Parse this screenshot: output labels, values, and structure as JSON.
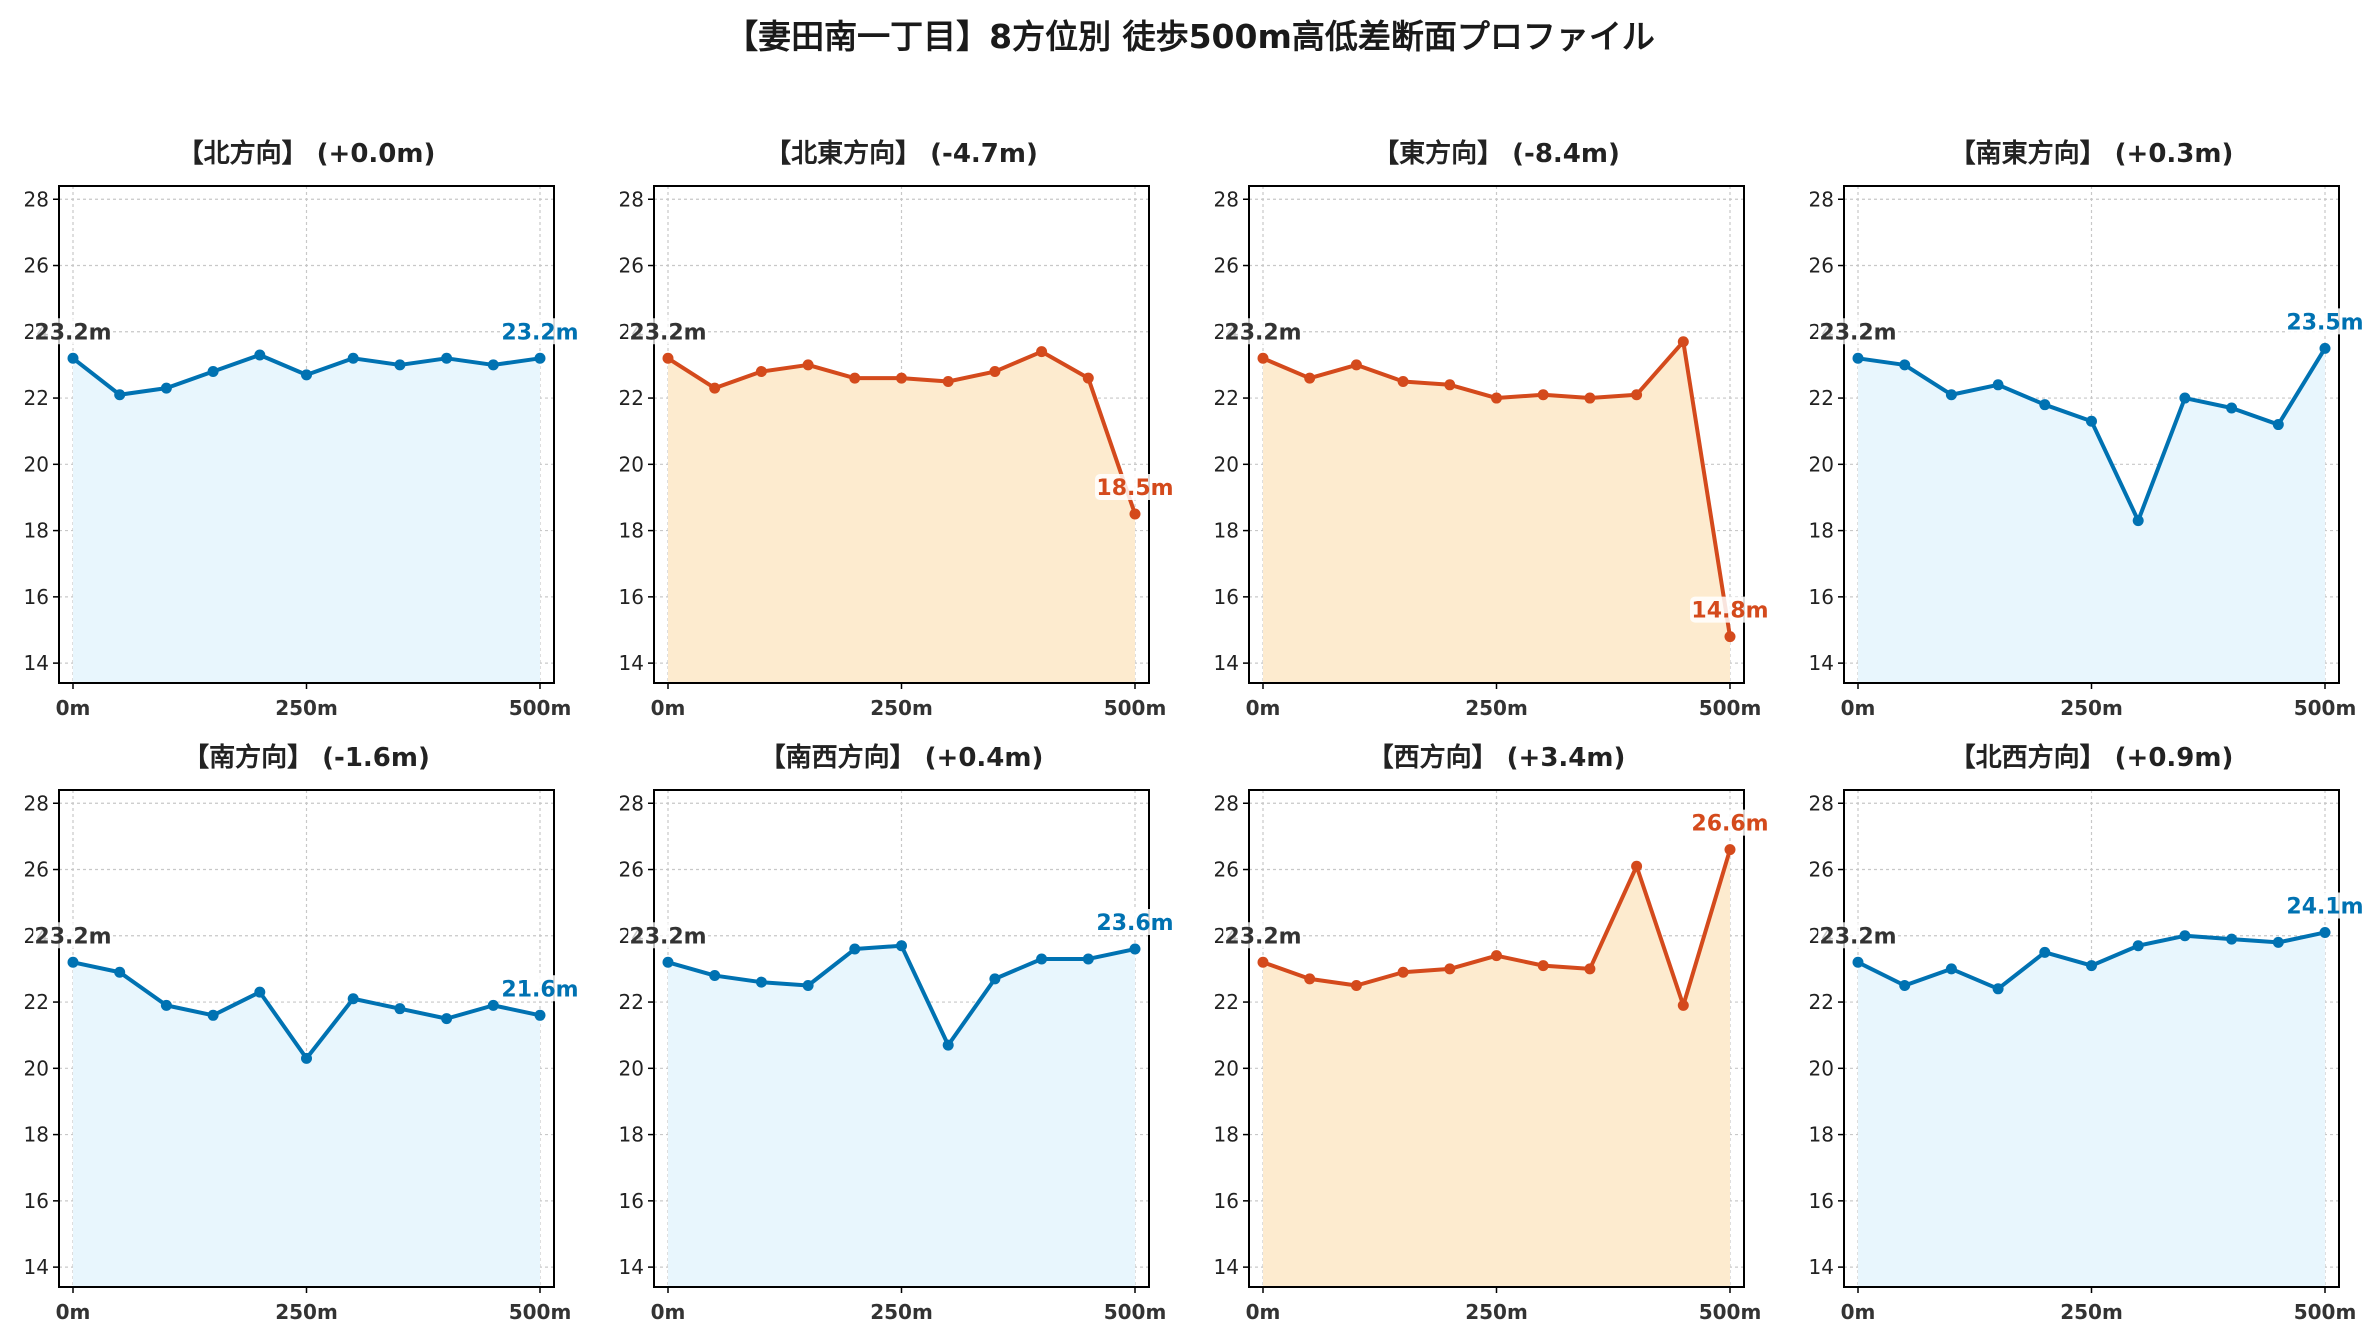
{
  "figure": {
    "title": "【妻田南一丁目】8方位別 徒歩500m高低差断面プロファイル"
  },
  "colors": {
    "up_line": "#0072b2",
    "up_fill": "#e8f6fd",
    "down_line": "#d44a1c",
    "down_fill": "#fdebcf",
    "start_label": "#333333"
  },
  "chart_data": [
    {
      "type": "line",
      "title": "【北方向】 (+0.0m)",
      "style": "blue",
      "x": [
        0,
        50,
        100,
        150,
        200,
        250,
        300,
        350,
        400,
        450,
        500
      ],
      "y": [
        23.2,
        22.1,
        22.3,
        22.8,
        23.3,
        22.7,
        23.2,
        23.0,
        23.2,
        23.0,
        23.2
      ],
      "start_label": "23.2m",
      "end_label": "23.2m",
      "ylim": [
        13.4,
        28.4
      ],
      "yticks": [
        "14",
        "16",
        "18",
        "20",
        "22",
        "24",
        "26",
        "28"
      ],
      "xticks": [
        "0m",
        "250m",
        "500m"
      ],
      "grid": true
    },
    {
      "type": "line",
      "title": "【北東方向】 (-4.7m)",
      "style": "orange",
      "x": [
        0,
        50,
        100,
        150,
        200,
        250,
        300,
        350,
        400,
        450,
        500
      ],
      "y": [
        23.2,
        22.3,
        22.8,
        23.0,
        22.6,
        22.6,
        22.5,
        22.8,
        23.4,
        22.6,
        18.5
      ],
      "start_label": "23.2m",
      "end_label": "18.5m",
      "ylim": [
        13.4,
        28.4
      ],
      "yticks": [
        "14",
        "16",
        "18",
        "20",
        "22",
        "24",
        "26",
        "28"
      ],
      "xticks": [
        "0m",
        "250m",
        "500m"
      ],
      "grid": true
    },
    {
      "type": "line",
      "title": "【東方向】 (-8.4m)",
      "style": "orange",
      "x": [
        0,
        50,
        100,
        150,
        200,
        250,
        300,
        350,
        400,
        450,
        500
      ],
      "y": [
        23.2,
        22.6,
        23.0,
        22.5,
        22.4,
        22.0,
        22.1,
        22.0,
        22.1,
        23.7,
        14.8
      ],
      "start_label": "23.2m",
      "end_label": "14.8m",
      "ylim": [
        13.4,
        28.4
      ],
      "yticks": [
        "14",
        "16",
        "18",
        "20",
        "22",
        "24",
        "26",
        "28"
      ],
      "xticks": [
        "0m",
        "250m",
        "500m"
      ],
      "grid": true
    },
    {
      "type": "line",
      "title": "【南東方向】 (+0.3m)",
      "style": "blue",
      "x": [
        0,
        50,
        100,
        150,
        200,
        250,
        300,
        350,
        400,
        450,
        500
      ],
      "y": [
        23.2,
        23.0,
        22.1,
        22.4,
        21.8,
        21.3,
        18.3,
        22.0,
        21.7,
        21.2,
        23.5
      ],
      "start_label": "23.2m",
      "end_label": "23.5m",
      "ylim": [
        13.4,
        28.4
      ],
      "yticks": [
        "14",
        "16",
        "18",
        "20",
        "22",
        "24",
        "26",
        "28"
      ],
      "xticks": [
        "0m",
        "250m",
        "500m"
      ],
      "grid": true
    },
    {
      "type": "line",
      "title": "【南方向】 (-1.6m)",
      "style": "blue",
      "x": [
        0,
        50,
        100,
        150,
        200,
        250,
        300,
        350,
        400,
        450,
        500
      ],
      "y": [
        23.2,
        22.9,
        21.9,
        21.6,
        22.3,
        20.3,
        22.1,
        21.8,
        21.5,
        21.9,
        21.6
      ],
      "start_label": "23.2m",
      "end_label": "21.6m",
      "ylim": [
        13.4,
        28.4
      ],
      "yticks": [
        "14",
        "16",
        "18",
        "20",
        "22",
        "24",
        "26",
        "28"
      ],
      "xticks": [
        "0m",
        "250m",
        "500m"
      ],
      "grid": true
    },
    {
      "type": "line",
      "title": "【南西方向】 (+0.4m)",
      "style": "blue",
      "x": [
        0,
        50,
        100,
        150,
        200,
        250,
        300,
        350,
        400,
        450,
        500
      ],
      "y": [
        23.2,
        22.8,
        22.6,
        22.5,
        23.6,
        23.7,
        20.7,
        22.7,
        23.3,
        23.3,
        23.6
      ],
      "start_label": "23.2m",
      "end_label": "23.6m",
      "ylim": [
        13.4,
        28.4
      ],
      "yticks": [
        "14",
        "16",
        "18",
        "20",
        "22",
        "24",
        "26",
        "28"
      ],
      "xticks": [
        "0m",
        "250m",
        "500m"
      ],
      "grid": true
    },
    {
      "type": "line",
      "title": "【西方向】 (+3.4m)",
      "style": "orange",
      "x": [
        0,
        50,
        100,
        150,
        200,
        250,
        300,
        350,
        400,
        450,
        500
      ],
      "y": [
        23.2,
        22.7,
        22.5,
        22.9,
        23.0,
        23.4,
        23.1,
        23.0,
        26.1,
        21.9,
        26.6
      ],
      "start_label": "23.2m",
      "end_label": "26.6m",
      "ylim": [
        13.4,
        28.4
      ],
      "yticks": [
        "14",
        "16",
        "18",
        "20",
        "22",
        "24",
        "26",
        "28"
      ],
      "xticks": [
        "0m",
        "250m",
        "500m"
      ],
      "grid": true
    },
    {
      "type": "line",
      "title": "【北西方向】 (+0.9m)",
      "style": "blue",
      "x": [
        0,
        50,
        100,
        150,
        200,
        250,
        300,
        350,
        400,
        450,
        500
      ],
      "y": [
        23.2,
        22.5,
        23.0,
        22.4,
        23.5,
        23.1,
        23.7,
        24.0,
        23.9,
        23.8,
        24.1
      ],
      "start_label": "23.2m",
      "end_label": "24.1m",
      "ylim": [
        13.4,
        28.4
      ],
      "yticks": [
        "14",
        "16",
        "18",
        "20",
        "22",
        "24",
        "26",
        "28"
      ],
      "xticks": [
        "0m",
        "250m",
        "500m"
      ],
      "grid": true
    }
  ]
}
